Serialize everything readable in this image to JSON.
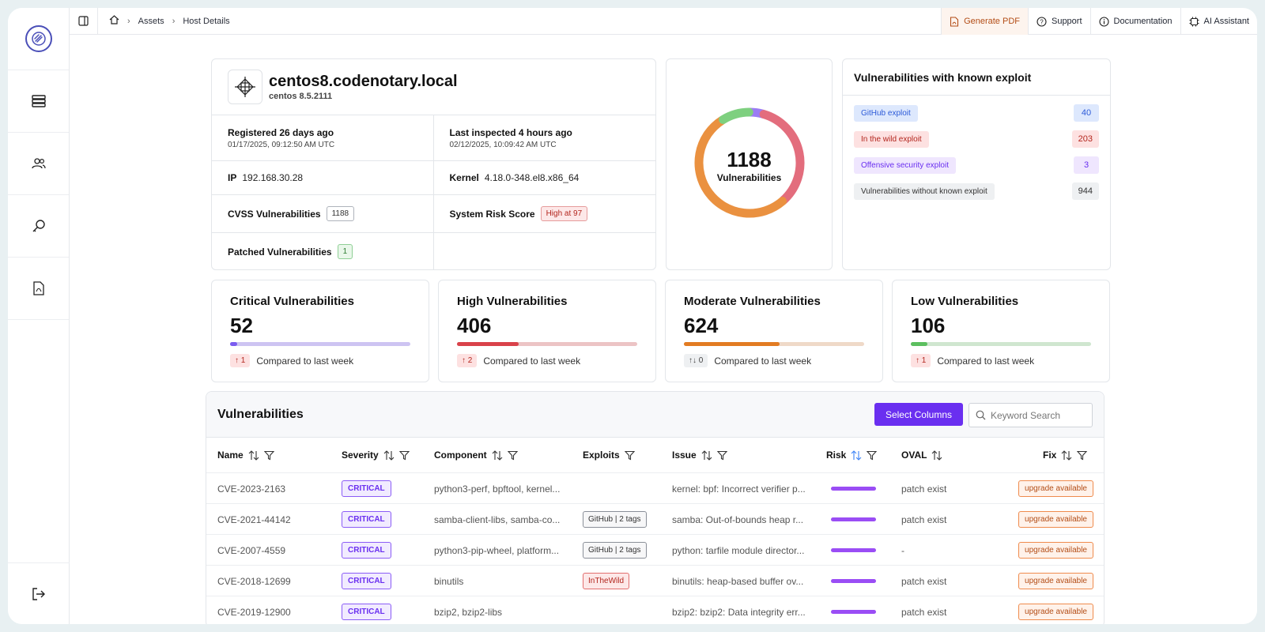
{
  "breadcrumb": {
    "assets": "Assets",
    "current": "Host Details"
  },
  "topbar": {
    "generate_pdf": "Generate PDF",
    "support": "Support",
    "documentation": "Documentation",
    "ai_assistant": "AI Assistant"
  },
  "host": {
    "name": "centos8.codenotary.local",
    "os": "centos 8.5.2111",
    "registered": "Registered 26 days ago",
    "registered_date": "01/17/2025, 09:12:50 AM UTC",
    "last_inspected": "Last inspected 4 hours ago",
    "last_inspected_date": "02/12/2025, 10:09:42 AM UTC",
    "ip_label": "IP",
    "ip": "192.168.30.28",
    "kernel_label": "Kernel",
    "kernel": "4.18.0-348.el8.x86_64",
    "cvss_label": "CVSS Vulnerabilities",
    "cvss_count": "1188",
    "risk_label": "System Risk Score",
    "risk_value": "High at 97",
    "patched_label": "Patched Vulnerabilities",
    "patched_count": "1"
  },
  "donut": {
    "total": "1188",
    "label": "Vulnerabilities",
    "segments": [
      {
        "name": "Critical",
        "value": 52,
        "color": "#9b7cf4"
      },
      {
        "name": "High",
        "value": 406,
        "color": "#e36d7d"
      },
      {
        "name": "Moderate",
        "value": 624,
        "color": "#ea9140"
      },
      {
        "name": "Low",
        "value": 106,
        "color": "#7ed07f"
      }
    ]
  },
  "exploits": {
    "title": "Vulnerabilities with known exploit",
    "rows": [
      {
        "label": "GitHub exploit",
        "count": "40",
        "bg": "#dde8fd",
        "fg": "#2d5bd8",
        "cbg": "#dde8fd",
        "cfg": "#2d5bd8"
      },
      {
        "label": "In the wild exploit",
        "count": "203",
        "bg": "#fde1e1",
        "fg": "#b3261e",
        "cbg": "#fde1e1",
        "cfg": "#b3261e"
      },
      {
        "label": "Offensive security exploit",
        "count": "3",
        "bg": "#efe6fe",
        "fg": "#6a2ff0",
        "cbg": "#efe6fe",
        "cfg": "#6a2ff0"
      },
      {
        "label": "Vulnerabilities without known exploit",
        "count": "944",
        "bg": "#eef0f2",
        "fg": "#333",
        "cbg": "#eef0f2",
        "cfg": "#333"
      }
    ]
  },
  "stats": [
    {
      "title": "Critical Vulnerabilities",
      "value": "52",
      "fraction": 0.04,
      "fill": "#7b5cf0",
      "track": "#cdc4f2",
      "delta": "1",
      "delta_icon": "↑",
      "delta_bg": "#fde1e1",
      "delta_fg": "#b3261e",
      "compare": "Compared to last week"
    },
    {
      "title": "High Vulnerabilities",
      "value": "406",
      "fraction": 0.34,
      "fill": "#d9424a",
      "track": "#ecc4c5",
      "delta": "2",
      "delta_icon": "↑",
      "delta_bg": "#fde1e1",
      "delta_fg": "#b3261e",
      "compare": "Compared to last week"
    },
    {
      "title": "Moderate Vulnerabilities",
      "value": "624",
      "fraction": 0.53,
      "fill": "#e27b22",
      "track": "#efd9c8",
      "delta": "0",
      "delta_icon": "↑↓",
      "delta_bg": "#eef0f2",
      "delta_fg": "#444",
      "compare": "Compared to last week"
    },
    {
      "title": "Low Vulnerabilities",
      "value": "106",
      "fraction": 0.09,
      "fill": "#5cbf5f",
      "track": "#cfe6cf",
      "delta": "1",
      "delta_icon": "↑",
      "delta_bg": "#fde1e1",
      "delta_fg": "#b3261e",
      "compare": "Compared to last week"
    }
  ],
  "vulns": {
    "title": "Vulnerabilities",
    "select_columns": "Select Columns",
    "search_placeholder": "Keyword Search",
    "columns": [
      "Name",
      "Severity",
      "Component",
      "Exploits",
      "Issue",
      "Risk",
      "OVAL",
      "Fix"
    ],
    "rows": [
      {
        "name": "CVE-2023-2163",
        "severity": "CRITICAL",
        "component": "python3-perf, bpftool, kernel...",
        "exploit": "",
        "exploit_type": "",
        "issue": "kernel: bpf: Incorrect verifier p...",
        "oval": "patch exist",
        "fix": "upgrade available"
      },
      {
        "name": "CVE-2021-44142",
        "severity": "CRITICAL",
        "component": "samba-client-libs, samba-co...",
        "exploit": "GitHub | 2 tags",
        "exploit_type": "github",
        "issue": "samba: Out-of-bounds heap r...",
        "oval": "patch exist",
        "fix": "upgrade available"
      },
      {
        "name": "CVE-2007-4559",
        "severity": "CRITICAL",
        "component": "python3-pip-wheel, platform...",
        "exploit": "GitHub | 2 tags",
        "exploit_type": "github",
        "issue": "python: tarfile module director...",
        "oval": "-",
        "fix": "upgrade available"
      },
      {
        "name": "CVE-2018-12699",
        "severity": "CRITICAL",
        "component": "binutils",
        "exploit": "InTheWild",
        "exploit_type": "wild",
        "issue": "binutils: heap-based buffer ov...",
        "oval": "patch exist",
        "fix": "upgrade available"
      },
      {
        "name": "CVE-2019-12900",
        "severity": "CRITICAL",
        "component": "bzip2, bzip2-libs",
        "exploit": "",
        "exploit_type": "",
        "issue": "bzip2: bzip2: Data integrity err...",
        "oval": "patch exist",
        "fix": "upgrade available"
      }
    ]
  }
}
